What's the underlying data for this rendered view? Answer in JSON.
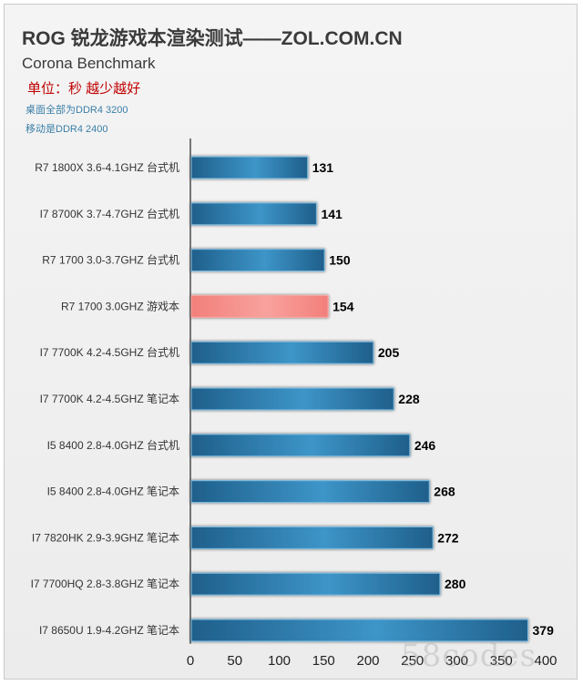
{
  "title": "ROG 锐龙游戏本渲染测试——ZOL.COM.CN",
  "subtitle": "Corona Benchmark",
  "unit_note": "单位：秒 越少越好",
  "notes": [
    "桌面全部为DDR4 3200",
    "移动是DDR4 2400"
  ],
  "watermark": "58codes",
  "colors": {
    "bar": "#2e7fb0",
    "bar_highlight": "#f48b86",
    "label": "#000000"
  },
  "chart_data": {
    "type": "bar",
    "orientation": "horizontal",
    "title": "ROG 锐龙游戏本渲染测试——ZOL.COM.CN",
    "subtitle": "Corona Benchmark",
    "xlabel": "",
    "ylabel": "",
    "xlim": [
      0,
      400
    ],
    "xticks": [
      0,
      50,
      100,
      150,
      200,
      250,
      300,
      350,
      400
    ],
    "grid": false,
    "legend": "none",
    "categories": [
      "R7 1800X  3.6-4.1GHZ 台式机",
      "I7 8700K 3.7-4.7GHZ 台式机",
      "R7 1700  3.0-3.7GHZ 台式机",
      "R7 1700  3.0GHZ 游戏本",
      "I7 7700K 4.2-4.5GHZ 台式机",
      "I7 7700K 4.2-4.5GHZ 笔记本",
      "I5 8400  2.8-4.0GHZ 台式机",
      "I5 8400  2.8-4.0GHZ 笔记本",
      "I7 7820HK  2.9-3.9GHZ 笔记本",
      "I7 7700HQ  2.8-3.8GHZ 笔记本",
      "I7 8650U  1.9-4.2GHZ 笔记本"
    ],
    "values": [
      131,
      141,
      150,
      154,
      205,
      228,
      246,
      268,
      272,
      280,
      379
    ],
    "highlight_index": 3
  }
}
